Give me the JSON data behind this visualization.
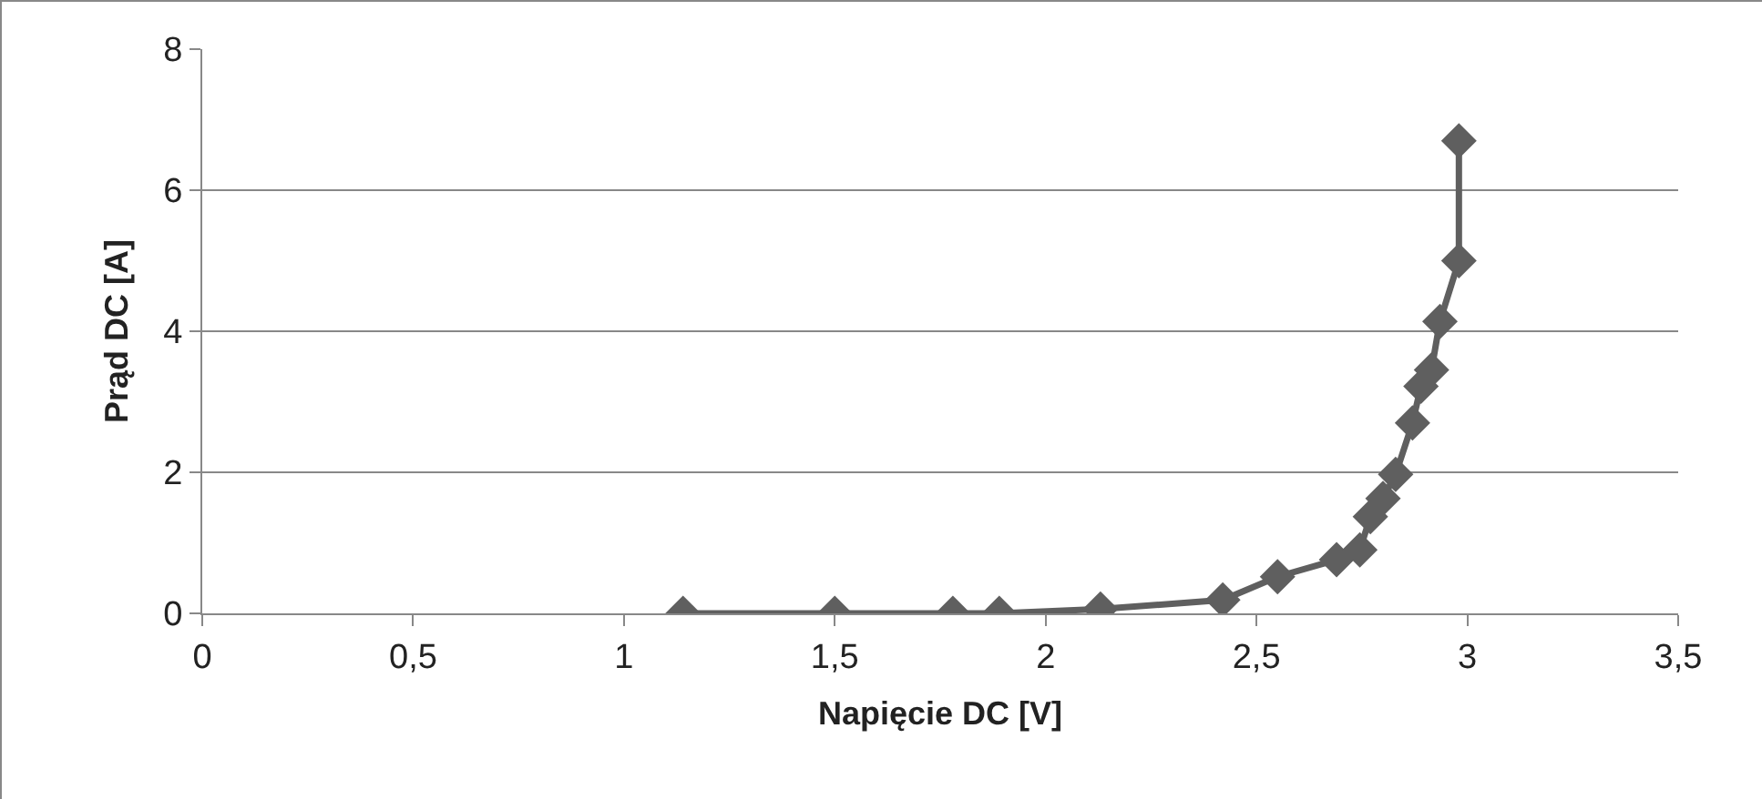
{
  "chart_data": {
    "type": "line",
    "xlabel": "Napięcie DC [V]",
    "ylabel": "Prąd DC [A]",
    "x": [
      1.14,
      1.5,
      1.78,
      1.89,
      2.13,
      2.42,
      2.55,
      2.69,
      2.745,
      2.77,
      2.8,
      2.83,
      2.87,
      2.89,
      2.915,
      2.935,
      2.98,
      2.98
    ],
    "series": [
      {
        "color": "#5f5f5f",
        "values": [
          0,
          0,
          0,
          0,
          0.06,
          0.19,
          0.52,
          0.76,
          0.9,
          1.37,
          1.63,
          1.97,
          2.7,
          3.22,
          3.45,
          4.14,
          5.0,
          6.7
        ]
      }
    ],
    "xlim": [
      0,
      3.5
    ],
    "xticks": [
      0,
      {
        "value": 0.5,
        "label": "0,5"
      },
      1,
      {
        "value": 1.5,
        "label": "1,5"
      },
      2,
      {
        "value": 2.5,
        "label": "2,5"
      },
      3,
      {
        "value": 3.5,
        "label": "3,5"
      }
    ],
    "ylim": [
      0,
      8
    ],
    "yticks": [
      0,
      2,
      4,
      6,
      8
    ],
    "grid": "y",
    "marker": "diamond",
    "line_style": "solid"
  }
}
